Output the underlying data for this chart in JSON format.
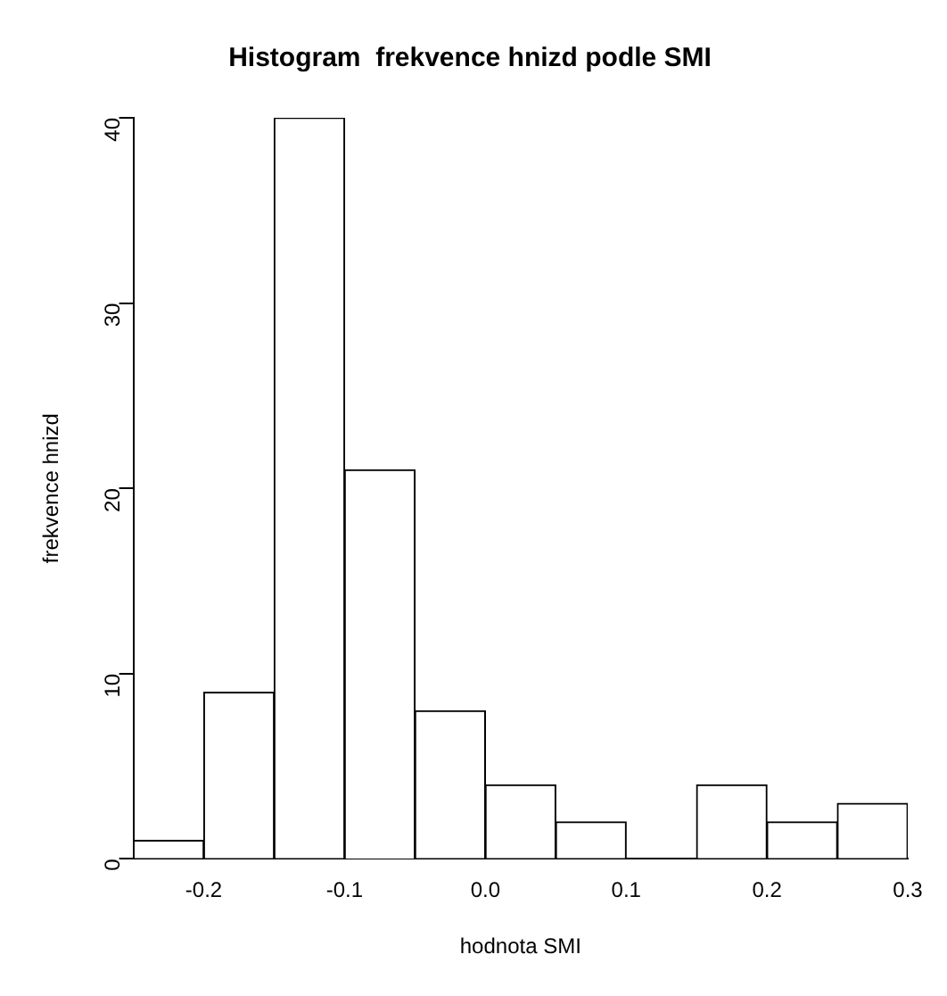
{
  "chart_data": {
    "type": "histogram",
    "title": "Histogram  frekvence hnizd podle SMI",
    "xlabel": "hodnota SMI",
    "ylabel": "frekvence hnizd",
    "bins": [
      -0.25,
      -0.2,
      -0.15,
      -0.1,
      -0.05,
      0.0,
      0.05,
      0.1,
      0.15,
      0.2,
      0.25,
      0.3
    ],
    "values": [
      1,
      9,
      40,
      21,
      8,
      4,
      2,
      0,
      4,
      2,
      3
    ],
    "color": "#ffffff",
    "xlim": [
      -0.25,
      0.3
    ],
    "xticks": [
      -0.2,
      -0.1,
      {
        "value": 0,
        "label": "0.0"
      },
      0.1,
      0.2,
      0.3
    ],
    "ylim": [
      0,
      40
    ],
    "yticks": [
      0,
      10,
      20,
      30,
      40
    ],
    "grid": false,
    "legend": false
  }
}
